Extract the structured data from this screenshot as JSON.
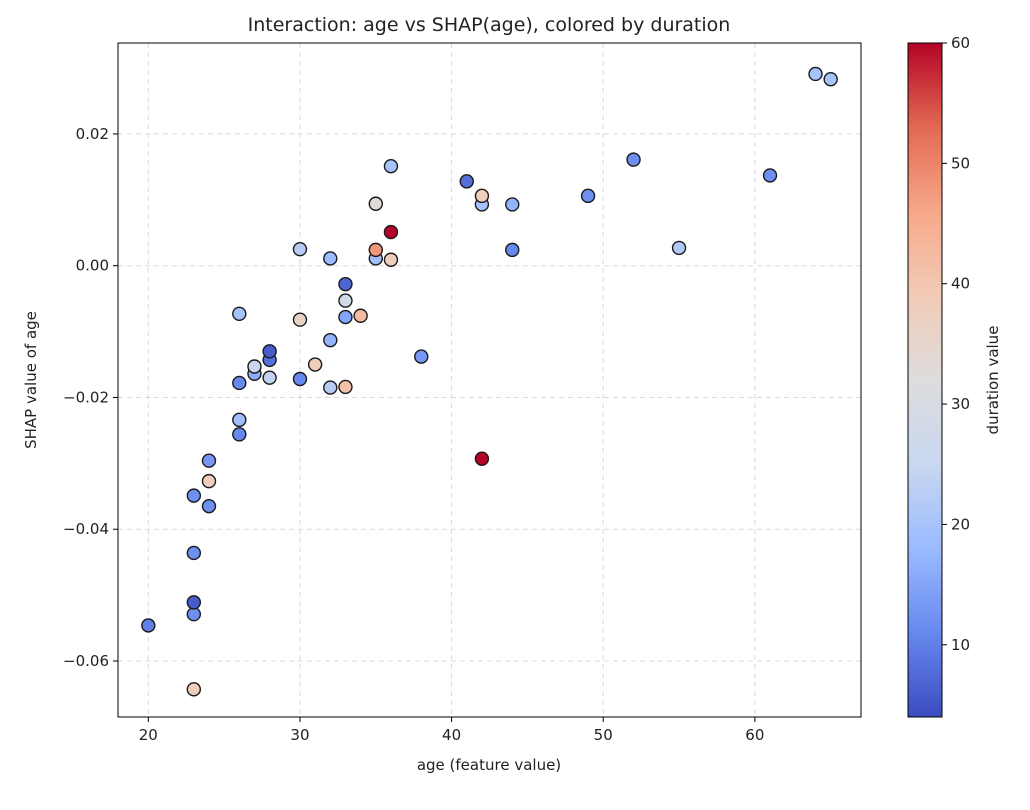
{
  "chart_data": {
    "type": "scatter",
    "title": "Interaction: age vs SHAP(age), colored by duration",
    "xlabel": "age (feature value)",
    "ylabel": "SHAP value of age",
    "xlim": [
      18,
      67
    ],
    "ylim": [
      -0.0685,
      0.0338
    ],
    "xticks": [
      20,
      30,
      40,
      50,
      60
    ],
    "yticks": [
      -0.06,
      -0.04,
      -0.02,
      0.0,
      0.02
    ],
    "xtick_labels": [
      "20",
      "30",
      "40",
      "50",
      "60"
    ],
    "ytick_labels": [
      "−0.06",
      "−0.04",
      "−0.02",
      "0.00",
      "0.02"
    ],
    "grid": true,
    "colorbar": {
      "label": "duration value",
      "range": [
        4,
        60
      ],
      "ticks": [
        10,
        20,
        30,
        40,
        50,
        60
      ],
      "tick_labels": [
        "10",
        "20",
        "30",
        "40",
        "50",
        "60"
      ],
      "colormap": "coolwarm",
      "colormap_stops": [
        "#3b4cc0",
        "#6788ee",
        "#9abbff",
        "#c9d7f0",
        "#dddddd",
        "#f2cbb7",
        "#f7a889",
        "#e26952",
        "#b40426"
      ]
    },
    "points": [
      {
        "x": 20,
        "y": -0.0546,
        "c": 10
      },
      {
        "x": 23,
        "y": -0.0643,
        "c": 38
      },
      {
        "x": 23,
        "y": -0.0529,
        "c": 12
      },
      {
        "x": 23,
        "y": -0.0511,
        "c": 6
      },
      {
        "x": 23,
        "y": -0.0436,
        "c": 12
      },
      {
        "x": 23,
        "y": -0.0349,
        "c": 12
      },
      {
        "x": 24,
        "y": -0.0365,
        "c": 12
      },
      {
        "x": 24,
        "y": -0.0327,
        "c": 38
      },
      {
        "x": 24,
        "y": -0.0296,
        "c": 13
      },
      {
        "x": 26,
        "y": -0.0256,
        "c": 11
      },
      {
        "x": 26,
        "y": -0.0234,
        "c": 19
      },
      {
        "x": 26,
        "y": -0.0178,
        "c": 11
      },
      {
        "x": 26,
        "y": -0.0073,
        "c": 20
      },
      {
        "x": 27,
        "y": -0.0164,
        "c": 16
      },
      {
        "x": 27,
        "y": -0.0153,
        "c": 25
      },
      {
        "x": 28,
        "y": -0.017,
        "c": 24
      },
      {
        "x": 28,
        "y": -0.0143,
        "c": 8
      },
      {
        "x": 28,
        "y": -0.013,
        "c": 6
      },
      {
        "x": 30,
        "y": -0.0172,
        "c": 11
      },
      {
        "x": 30,
        "y": -0.0082,
        "c": 36
      },
      {
        "x": 30,
        "y": 0.0025,
        "c": 22
      },
      {
        "x": 31,
        "y": -0.015,
        "c": 38
      },
      {
        "x": 32,
        "y": -0.0185,
        "c": 22
      },
      {
        "x": 32,
        "y": -0.0113,
        "c": 17
      },
      {
        "x": 32,
        "y": 0.0011,
        "c": 18
      },
      {
        "x": 33,
        "y": -0.0184,
        "c": 41
      },
      {
        "x": 33,
        "y": -0.0078,
        "c": 15
      },
      {
        "x": 33,
        "y": -0.0053,
        "c": 28
      },
      {
        "x": 33,
        "y": -0.0028,
        "c": 7
      },
      {
        "x": 34,
        "y": -0.0076,
        "c": 42
      },
      {
        "x": 35,
        "y": 0.0011,
        "c": 19
      },
      {
        "x": 35,
        "y": 0.0024,
        "c": 48
      },
      {
        "x": 35,
        "y": 0.0094,
        "c": 33
      },
      {
        "x": 36,
        "y": 0.0009,
        "c": 38
      },
      {
        "x": 36,
        "y": 0.0051,
        "c": 60
      },
      {
        "x": 36,
        "y": 0.0151,
        "c": 20
      },
      {
        "x": 38,
        "y": -0.0138,
        "c": 13
      },
      {
        "x": 41,
        "y": 0.0128,
        "c": 8
      },
      {
        "x": 42,
        "y": 0.0093,
        "c": 20
      },
      {
        "x": 42,
        "y": 0.0106,
        "c": 38
      },
      {
        "x": 42,
        "y": -0.0293,
        "c": 60
      },
      {
        "x": 44,
        "y": 0.0093,
        "c": 17
      },
      {
        "x": 44,
        "y": 0.0024,
        "c": 11
      },
      {
        "x": 49,
        "y": 0.0106,
        "c": 12
      },
      {
        "x": 52,
        "y": 0.0161,
        "c": 12
      },
      {
        "x": 55,
        "y": 0.0027,
        "c": 21
      },
      {
        "x": 61,
        "y": 0.0137,
        "c": 12
      },
      {
        "x": 64,
        "y": 0.0291,
        "c": 20
      },
      {
        "x": 65,
        "y": 0.0283,
        "c": 20
      }
    ]
  }
}
